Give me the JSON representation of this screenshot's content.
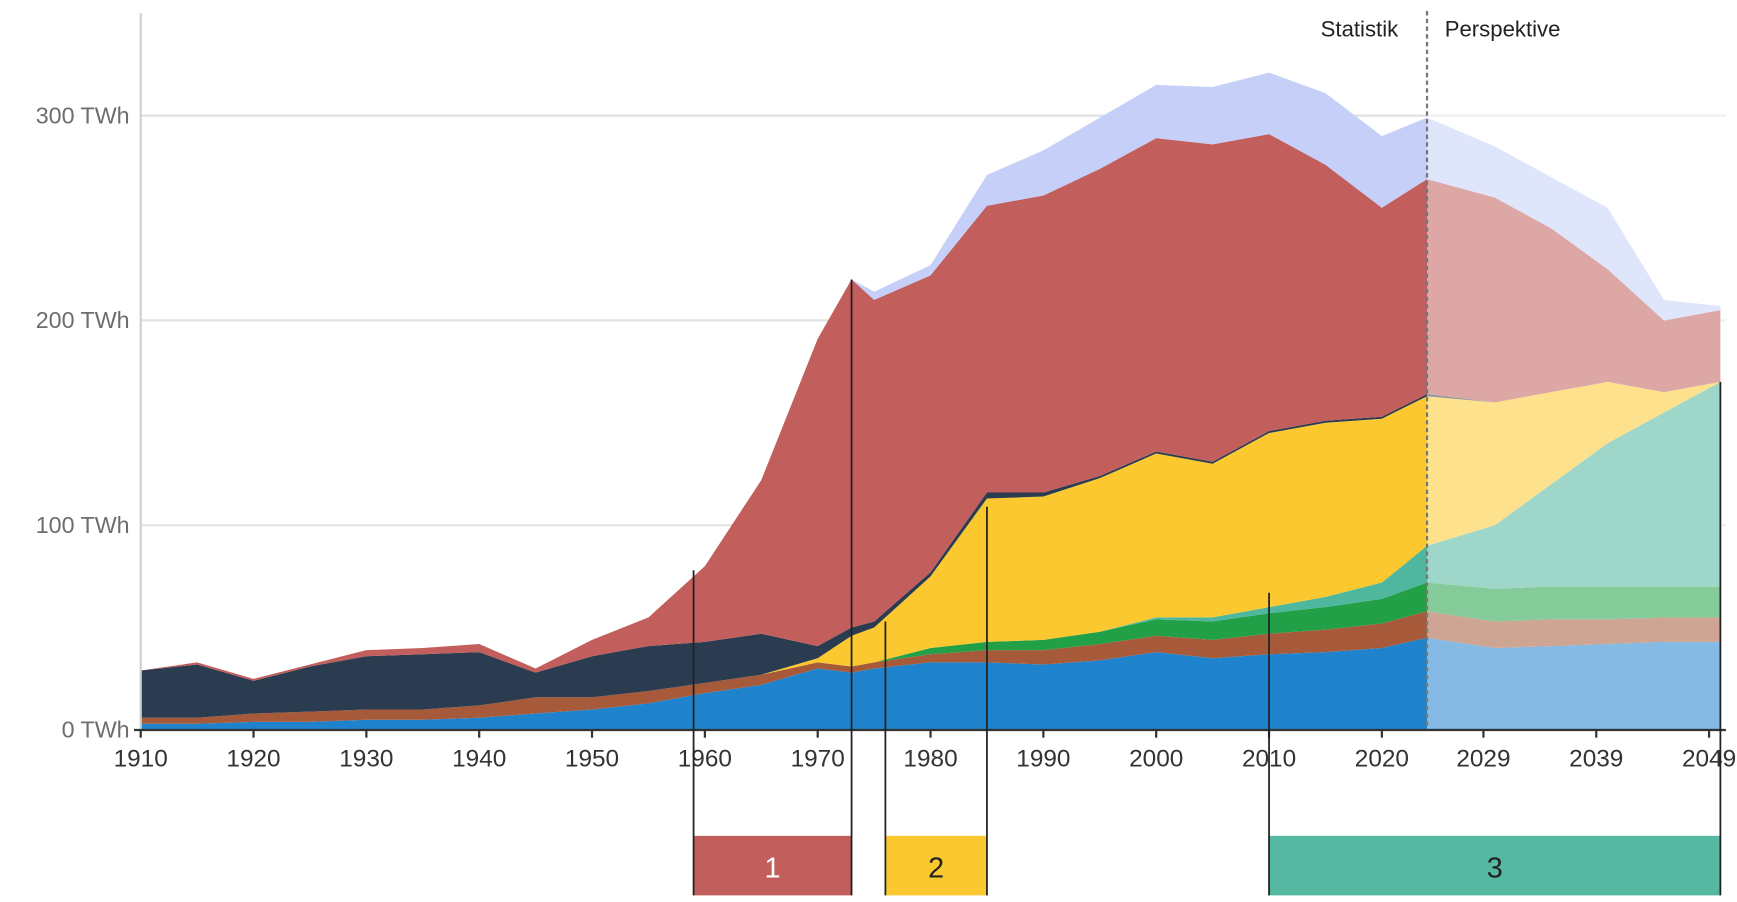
{
  "chart_data": {
    "type": "stacked_area",
    "x": [
      1910,
      1915,
      1920,
      1925,
      1930,
      1935,
      1940,
      1945,
      1950,
      1955,
      1960,
      1965,
      1970,
      1973,
      1975,
      1980,
      1985,
      1990,
      1995,
      2000,
      2005,
      2010,
      2015,
      2020,
      2024,
      2030,
      2035,
      2040,
      2045,
      2050
    ],
    "series": [
      {
        "color": "#1f82cc",
        "values": [
          3,
          3,
          4,
          4,
          5,
          5,
          6,
          8,
          10,
          13,
          18,
          22,
          30,
          28,
          30,
          33,
          33,
          32,
          34,
          38,
          35,
          37,
          38,
          40,
          45,
          40,
          41,
          42,
          43,
          43
        ]
      },
      {
        "color": "#a65a3a",
        "values": [
          3,
          3,
          4,
          5,
          5,
          5,
          6,
          8,
          6,
          6,
          5,
          5,
          3,
          3,
          3,
          4,
          6,
          7,
          8,
          8,
          9,
          10,
          11,
          12,
          13,
          13,
          13,
          12,
          12,
          12
        ]
      },
      {
        "color": "#21a047",
        "values": [
          0,
          0,
          0,
          0,
          0,
          0,
          0,
          0,
          0,
          0,
          0,
          0,
          0,
          0,
          0,
          3,
          4,
          5,
          6,
          8,
          9,
          10,
          11,
          12,
          14,
          16,
          16,
          16,
          15,
          15
        ]
      },
      {
        "color": "#4fb79d",
        "values": [
          0,
          0,
          0,
          0,
          0,
          0,
          0,
          0,
          0,
          0,
          0,
          0,
          0,
          0,
          0,
          0,
          0,
          0,
          0,
          1,
          2,
          3,
          5,
          8,
          18,
          31,
          50,
          70,
          85,
          100
        ]
      },
      {
        "color": "#fbc92f",
        "values": [
          0,
          0,
          0,
          0,
          0,
          0,
          0,
          0,
          0,
          0,
          0,
          0,
          2,
          15,
          17,
          35,
          70,
          70,
          75,
          80,
          75,
          85,
          85,
          80,
          73,
          60,
          45,
          30,
          10,
          0
        ]
      },
      {
        "color": "#2b3b50",
        "values": [
          23,
          26,
          16,
          22,
          26,
          27,
          26,
          12,
          20,
          22,
          20,
          20,
          6,
          4,
          3,
          2,
          3,
          2,
          1,
          1,
          1,
          1,
          1,
          1,
          1,
          0,
          0,
          0,
          0,
          0
        ]
      },
      {
        "color": "#c25f5d",
        "values": [
          0,
          1,
          1,
          1,
          3,
          3,
          4,
          2,
          8,
          14,
          37,
          75,
          150,
          170,
          157,
          145,
          140,
          145,
          150,
          153,
          155,
          145,
          125,
          102,
          105,
          100,
          80,
          55,
          35,
          35
        ]
      },
      {
        "color": "#c5cff8",
        "values": [
          0,
          0,
          0,
          0,
          0,
          0,
          0,
          0,
          0,
          0,
          0,
          0,
          0,
          0,
          4,
          5,
          15,
          22,
          25,
          26,
          28,
          30,
          35,
          35,
          30,
          25,
          25,
          30,
          10,
          2
        ]
      }
    ],
    "xlim": [
      1910,
      2050
    ],
    "xticks": [
      1910,
      1920,
      1930,
      1940,
      1950,
      1960,
      1970,
      1980,
      1990,
      2000,
      2010,
      2020,
      2029,
      2039,
      2049
    ],
    "ylim": [
      0,
      350
    ],
    "yticks": [
      {
        "value": 0,
        "label": "0 TWh"
      },
      {
        "value": 100,
        "label": "100 TWh"
      },
      {
        "value": 200,
        "label": "200 TWh"
      },
      {
        "value": 300,
        "label": "300 TWh"
      }
    ],
    "grid": true,
    "divider": 2024,
    "divider_labels": [
      "Statistik",
      "Perspektive"
    ],
    "periods": [
      {
        "label": "1",
        "start": 1959,
        "end": 1973,
        "start_top": 78,
        "end_top": 220,
        "color": "#c25f5d"
      },
      {
        "label": "2",
        "start": 1976,
        "end": 1985,
        "start_top": 53,
        "end_top": 109,
        "color": "#fbc92f"
      },
      {
        "label": "3",
        "start": 2010,
        "end": 2050,
        "start_top": 67,
        "end_top": 170,
        "color": "#55b8a0"
      }
    ]
  }
}
